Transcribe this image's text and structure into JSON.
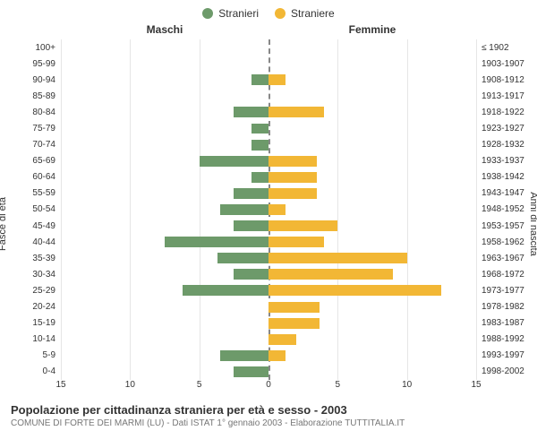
{
  "legend": {
    "male": {
      "label": "Stranieri",
      "color": "#6d9a6a"
    },
    "female": {
      "label": "Straniere",
      "color": "#f2b735"
    }
  },
  "titles": {
    "male": "Maschi",
    "female": "Femmine"
  },
  "axis": {
    "left_label": "Fasce di età",
    "right_label": "Anni di nascita"
  },
  "x": {
    "min": 0,
    "max": 15,
    "step": 5
  },
  "styling": {
    "background_color": "#ffffff",
    "grid_color": "#e6e6e6",
    "center_line_color": "#888888",
    "tick_fontsize": 10,
    "title_fontsize": 12,
    "bar_height_pct": 66
  },
  "rows": [
    {
      "age": "100+",
      "birth": "≤ 1902",
      "m": 0,
      "f": 0
    },
    {
      "age": "95-99",
      "birth": "1903-1907",
      "m": 0,
      "f": 0
    },
    {
      "age": "90-94",
      "birth": "1908-1912",
      "m": 1.2,
      "f": 1.2
    },
    {
      "age": "85-89",
      "birth": "1913-1917",
      "m": 0,
      "f": 0
    },
    {
      "age": "80-84",
      "birth": "1918-1922",
      "m": 2.5,
      "f": 4.0
    },
    {
      "age": "75-79",
      "birth": "1923-1927",
      "m": 1.2,
      "f": 0
    },
    {
      "age": "70-74",
      "birth": "1928-1932",
      "m": 1.2,
      "f": 0
    },
    {
      "age": "65-69",
      "birth": "1933-1937",
      "m": 5.0,
      "f": 3.5
    },
    {
      "age": "60-64",
      "birth": "1938-1942",
      "m": 1.2,
      "f": 3.5
    },
    {
      "age": "55-59",
      "birth": "1943-1947",
      "m": 2.5,
      "f": 3.5
    },
    {
      "age": "50-54",
      "birth": "1948-1952",
      "m": 3.5,
      "f": 1.2
    },
    {
      "age": "45-49",
      "birth": "1953-1957",
      "m": 2.5,
      "f": 5.0
    },
    {
      "age": "40-44",
      "birth": "1958-1962",
      "m": 7.5,
      "f": 4.0
    },
    {
      "age": "35-39",
      "birth": "1963-1967",
      "m": 3.7,
      "f": 10.0
    },
    {
      "age": "30-34",
      "birth": "1968-1972",
      "m": 2.5,
      "f": 9.0
    },
    {
      "age": "25-29",
      "birth": "1973-1977",
      "m": 6.2,
      "f": 12.5
    },
    {
      "age": "20-24",
      "birth": "1978-1982",
      "m": 0,
      "f": 3.7
    },
    {
      "age": "15-19",
      "birth": "1983-1987",
      "m": 0,
      "f": 3.7
    },
    {
      "age": "10-14",
      "birth": "1988-1992",
      "m": 0,
      "f": 2.0
    },
    {
      "age": "5-9",
      "birth": "1993-1997",
      "m": 3.5,
      "f": 1.2
    },
    {
      "age": "0-4",
      "birth": "1998-2002",
      "m": 2.5,
      "f": 0
    }
  ],
  "footer": {
    "title": "Popolazione per cittadinanza straniera per età e sesso - 2003",
    "subtitle": "COMUNE DI FORTE DEI MARMI (LU) - Dati ISTAT 1° gennaio 2003 - Elaborazione TUTTITALIA.IT"
  }
}
